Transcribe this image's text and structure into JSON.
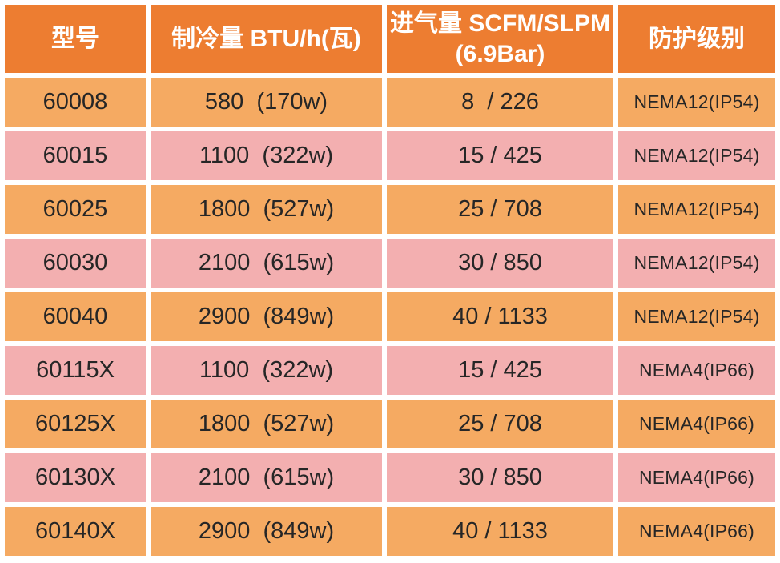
{
  "chart_data": {
    "type": "table",
    "title": "",
    "header": {
      "model": "型号",
      "cooling": "制冷量 BTU/h(瓦)",
      "airflow_line1": "进气量 SCFM/SLPM",
      "airflow_line2": "(6.9Bar)",
      "protection": "防护级别"
    },
    "rows": [
      {
        "model": "60008",
        "cooling": "580  (170w)",
        "airflow": "8  / 226",
        "protection": "NEMA12(IP54)"
      },
      {
        "model": "60015",
        "cooling": "1100  (322w)",
        "airflow": "15 / 425",
        "protection": "NEMA12(IP54)"
      },
      {
        "model": "60025",
        "cooling": "1800  (527w)",
        "airflow": "25 / 708",
        "protection": "NEMA12(IP54)"
      },
      {
        "model": "60030",
        "cooling": "2100  (615w)",
        "airflow": "30 / 850",
        "protection": "NEMA12(IP54)"
      },
      {
        "model": "60040",
        "cooling": "2900  (849w)",
        "airflow": "40 / 1133",
        "protection": "NEMA12(IP54)"
      },
      {
        "model": "60115X",
        "cooling": "1100  (322w)",
        "airflow": "15 / 425",
        "protection": "NEMA4(IP66)"
      },
      {
        "model": "60125X",
        "cooling": "1800  (527w)",
        "airflow": "25 / 708",
        "protection": "NEMA4(IP66)"
      },
      {
        "model": "60130X",
        "cooling": "2100  (615w)",
        "airflow": "30 / 850",
        "protection": "NEMA4(IP66)"
      },
      {
        "model": "60140X",
        "cooling": "2900  (849w)",
        "airflow": "40 / 1133",
        "protection": "NEMA4(IP66)"
      }
    ]
  },
  "colors": {
    "header_bg": "#ED7D31",
    "row_orange": "#F5AA62",
    "row_pink": "#F3AFB0",
    "header_text": "#FFFFFF",
    "body_text": "#262626",
    "gap_color": "#FFFFFF"
  }
}
